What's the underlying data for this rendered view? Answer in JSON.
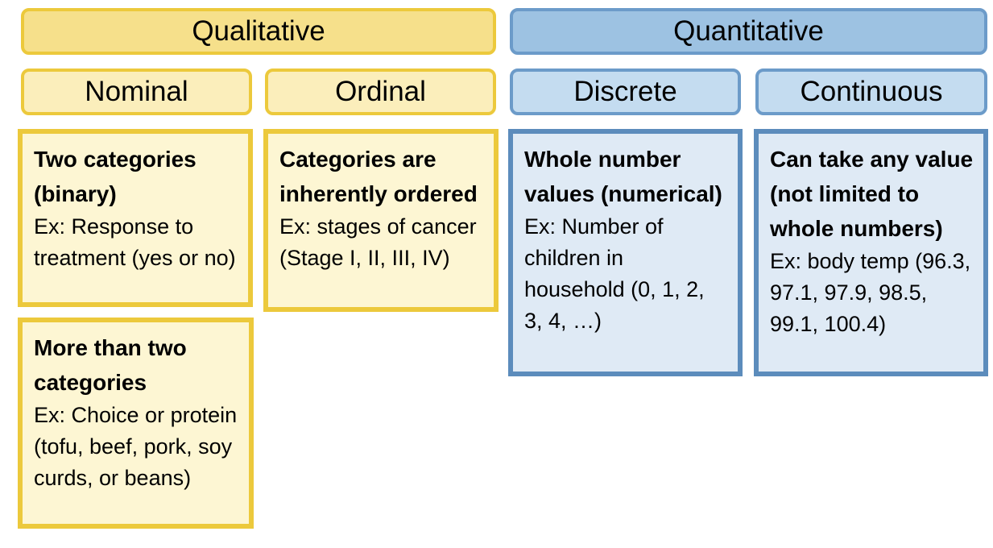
{
  "headers": {
    "qualitative": "Qualitative",
    "quantitative": "Quantitative",
    "nominal": "Nominal",
    "ordinal": "Ordinal",
    "discrete": "Discrete",
    "continuous": "Continuous"
  },
  "cards": {
    "nominal_binary": {
      "head": "Two categories (binary)",
      "example": "Ex: Response to treatment (yes or no)"
    },
    "nominal_multi": {
      "head": "More than two categories",
      "example": "Ex: Choice or protein (tofu, beef, pork, soy curds, or beans)"
    },
    "ordinal": {
      "head": "Categories are inherently ordered",
      "example": "Ex: stages of cancer (Stage I, II, III, IV)"
    },
    "discrete": {
      "head": "Whole number values (numerical)",
      "example": "Ex: Number of children in household (0, 1, 2, 3, 4, …)"
    },
    "continuous": {
      "head": "Can take any value (not limited to whole numbers)",
      "example": "Ex: body temp (96.3, 97.1, 97.9, 98.5, 99.1, 100.4)"
    }
  },
  "colors": {
    "qualitative_fill": "#f6e08b",
    "qualitative_border": "#ecc93c",
    "quantitative_fill": "#9dc2e2",
    "quantitative_border": "#6c9bc9"
  }
}
